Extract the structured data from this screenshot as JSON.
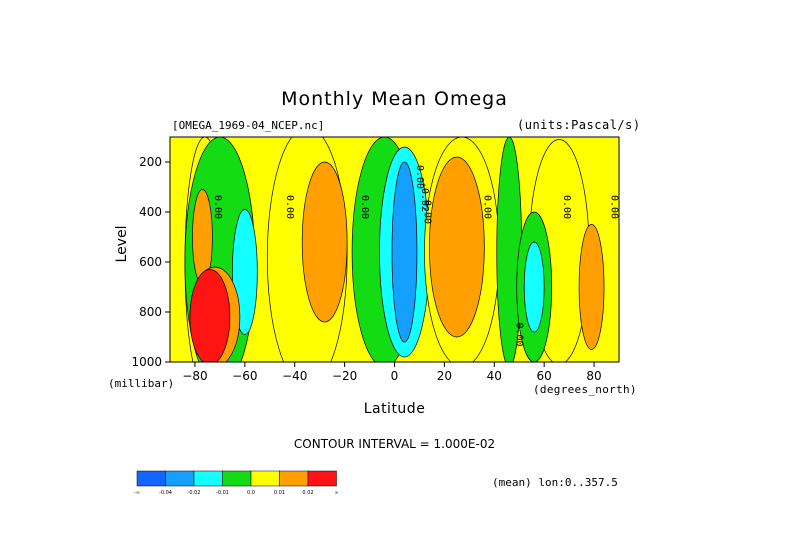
{
  "header": {
    "title": "Monthly Mean Omega",
    "filename": "[OMEGA_1969-04_NCEP.nc]",
    "units": "(units:Pascal/s)"
  },
  "axes": {
    "ylabel": "Level",
    "yunit": "(millibar)",
    "xlabel": "Latitude",
    "xunit": "(degrees_north)"
  },
  "footer": {
    "contour_interval": "CONTOUR INTERVAL = 1.000E-02",
    "mean_lon": "(mean) lon:0..357.5"
  },
  "colorbar": {
    "colors": [
      "#1464ff",
      "#14a0ff",
      "#14ffff",
      "#14dc14",
      "#ffff00",
      "#ffa000",
      "#ff1414"
    ],
    "labels": [
      "-∞",
      "-0.04",
      "-0.02",
      "-0.01",
      "0.0",
      "0.01",
      "0.02",
      "∞"
    ]
  },
  "chart_data": {
    "type": "heatmap",
    "title": "Monthly Mean Omega",
    "xlabel": "Latitude",
    "ylabel": "Level",
    "xlim": [
      -90,
      90
    ],
    "ylim": [
      1000,
      100
    ],
    "xticks": [
      -80,
      -60,
      -40,
      -20,
      0,
      20,
      40,
      60,
      80
    ],
    "yticks": [
      200,
      400,
      600,
      800,
      1000
    ],
    "contour_interval": 0.01,
    "contour_labels": [
      {
        "text": "0.00",
        "lat": -72,
        "lev": 380
      },
      {
        "text": "0.00",
        "lat": -43,
        "lev": 380
      },
      {
        "text": "0.00",
        "lat": -13,
        "lev": 380
      },
      {
        "text": "0.00",
        "lat": 9,
        "lev": 260
      },
      {
        "text": "-0.02",
        "lat": 11,
        "lev": 340
      },
      {
        "text": "0.00",
        "lat": 12,
        "lev": 400
      },
      {
        "text": "0.00",
        "lat": 36,
        "lev": 380
      },
      {
        "text": "0.00",
        "lat": 49,
        "lev": 890
      },
      {
        "text": "0.00",
        "lat": 68,
        "lev": 380
      },
      {
        "text": "0.00",
        "lat": 87,
        "lev": 380
      }
    ],
    "regions": [
      {
        "fill": "#ffff00",
        "cx": -76,
        "cy": 600,
        "rx": 8,
        "ry": 500
      },
      {
        "fill": "#14dc14",
        "cx": -70,
        "cy": 600,
        "rx": 14,
        "ry": 500
      },
      {
        "fill": "#14ffff",
        "cx": -60,
        "cy": 640,
        "rx": 5,
        "ry": 250
      },
      {
        "fill": "#ffa000",
        "cx": -77,
        "cy": 500,
        "rx": 4,
        "ry": 190
      },
      {
        "fill": "#ffff00",
        "cx": -35,
        "cy": 580,
        "rx": 16,
        "ry": 520
      },
      {
        "fill": "#ffa000",
        "cx": -28,
        "cy": 520,
        "rx": 9,
        "ry": 320
      },
      {
        "fill": "#14dc14",
        "cx": -4,
        "cy": 560,
        "rx": 13,
        "ry": 460
      },
      {
        "fill": "#14ffff",
        "cx": 4,
        "cy": 560,
        "rx": 10,
        "ry": 420
      },
      {
        "fill": "#14a0ff",
        "cx": 4,
        "cy": 560,
        "rx": 5,
        "ry": 360
      },
      {
        "fill": "#ffff00",
        "cx": 27,
        "cy": 560,
        "rx": 15,
        "ry": 460
      },
      {
        "fill": "#ffa000",
        "cx": 25,
        "cy": 540,
        "rx": 11,
        "ry": 360
      },
      {
        "fill": "#14dc14",
        "cx": 46,
        "cy": 560,
        "rx": 5,
        "ry": 460
      },
      {
        "fill": "#ffff00",
        "cx": 66,
        "cy": 560,
        "rx": 12,
        "ry": 450
      },
      {
        "fill": "#14dc14",
        "cx": 56,
        "cy": 700,
        "rx": 7,
        "ry": 300
      },
      {
        "fill": "#14ffff",
        "cx": 56,
        "cy": 700,
        "rx": 4,
        "ry": 180
      },
      {
        "fill": "#ffa000",
        "cx": 79,
        "cy": 700,
        "rx": 5,
        "ry": 250
      },
      {
        "fill": "#ffa000",
        "cx": -72,
        "cy": 820,
        "rx": 10,
        "ry": 200
      },
      {
        "fill": "#ff1414",
        "cx": -74,
        "cy": 820,
        "rx": 8,
        "ry": 190
      }
    ]
  }
}
